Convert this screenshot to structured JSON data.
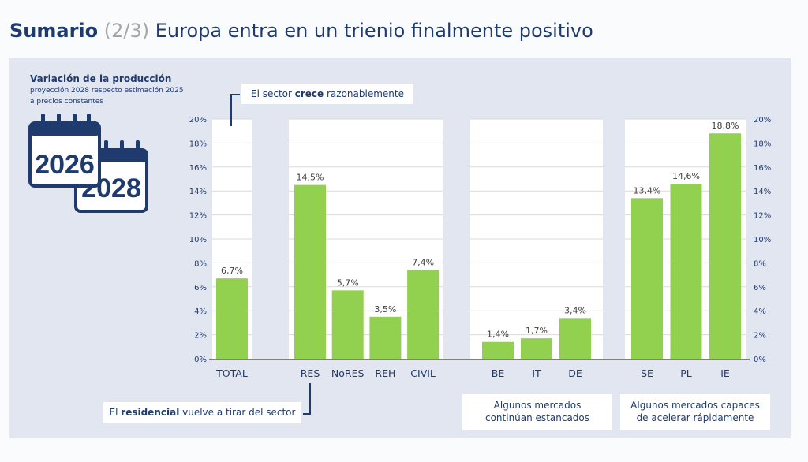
{
  "header": {
    "title_bold": "Sumario",
    "title_part": "(2/3)",
    "title_rest": "Europa entra en un trienio finalmente positivo"
  },
  "subtitle": {
    "line1": "Variación de la producción",
    "line2": "proyección 2028 respecto estimación 2025",
    "line3": "a precios constantes"
  },
  "calendar_icon": {
    "year1": "2026",
    "year2": "2028"
  },
  "callouts": {
    "top": {
      "pre": "El sector ",
      "bold": "crece",
      "post": " razonablemente"
    },
    "bottom": {
      "pre": "El ",
      "bold": "residencial",
      "post": " vuelve a tirar del sector"
    },
    "stagnant": {
      "line1": "Algunos mercados",
      "line2": "continúan estancados"
    },
    "accelerate": {
      "line1": "Algunos mercados capaces",
      "line2": "de acelerar rápidamente"
    }
  },
  "colors": {
    "bar": "#92d050",
    "navy": "#1f3b6e",
    "panel": "#e2e6f1",
    "plot": "#ffffff"
  },
  "chart_data": {
    "type": "bar",
    "title": "Variación de la producción",
    "ylim": [
      0,
      20
    ],
    "yticks": [
      0,
      2,
      4,
      6,
      8,
      10,
      12,
      14,
      16,
      18,
      20
    ],
    "ytick_labels": [
      "0%",
      "2%",
      "4%",
      "6%",
      "8%",
      "10%",
      "12%",
      "14%",
      "16%",
      "18%",
      "20%"
    ],
    "groups": [
      {
        "categories": [
          "TOTAL"
        ],
        "values": [
          6.7
        ],
        "labels": [
          "6,7%"
        ]
      },
      {
        "categories": [
          "RES",
          "NoRES",
          "REH",
          "CIVIL"
        ],
        "values": [
          14.5,
          5.7,
          3.5,
          7.4
        ],
        "labels": [
          "14,5%",
          "5,7%",
          "3,5%",
          "7,4%"
        ]
      },
      {
        "categories": [
          "BE",
          "IT",
          "DE"
        ],
        "values": [
          1.4,
          1.7,
          3.4
        ],
        "labels": [
          "1,4%",
          "1,7%",
          "3,4%"
        ]
      },
      {
        "categories": [
          "SE",
          "PL",
          "IE"
        ],
        "values": [
          13.4,
          14.6,
          18.8
        ],
        "labels": [
          "13,4%",
          "14,6%",
          "18,8%"
        ]
      }
    ]
  }
}
